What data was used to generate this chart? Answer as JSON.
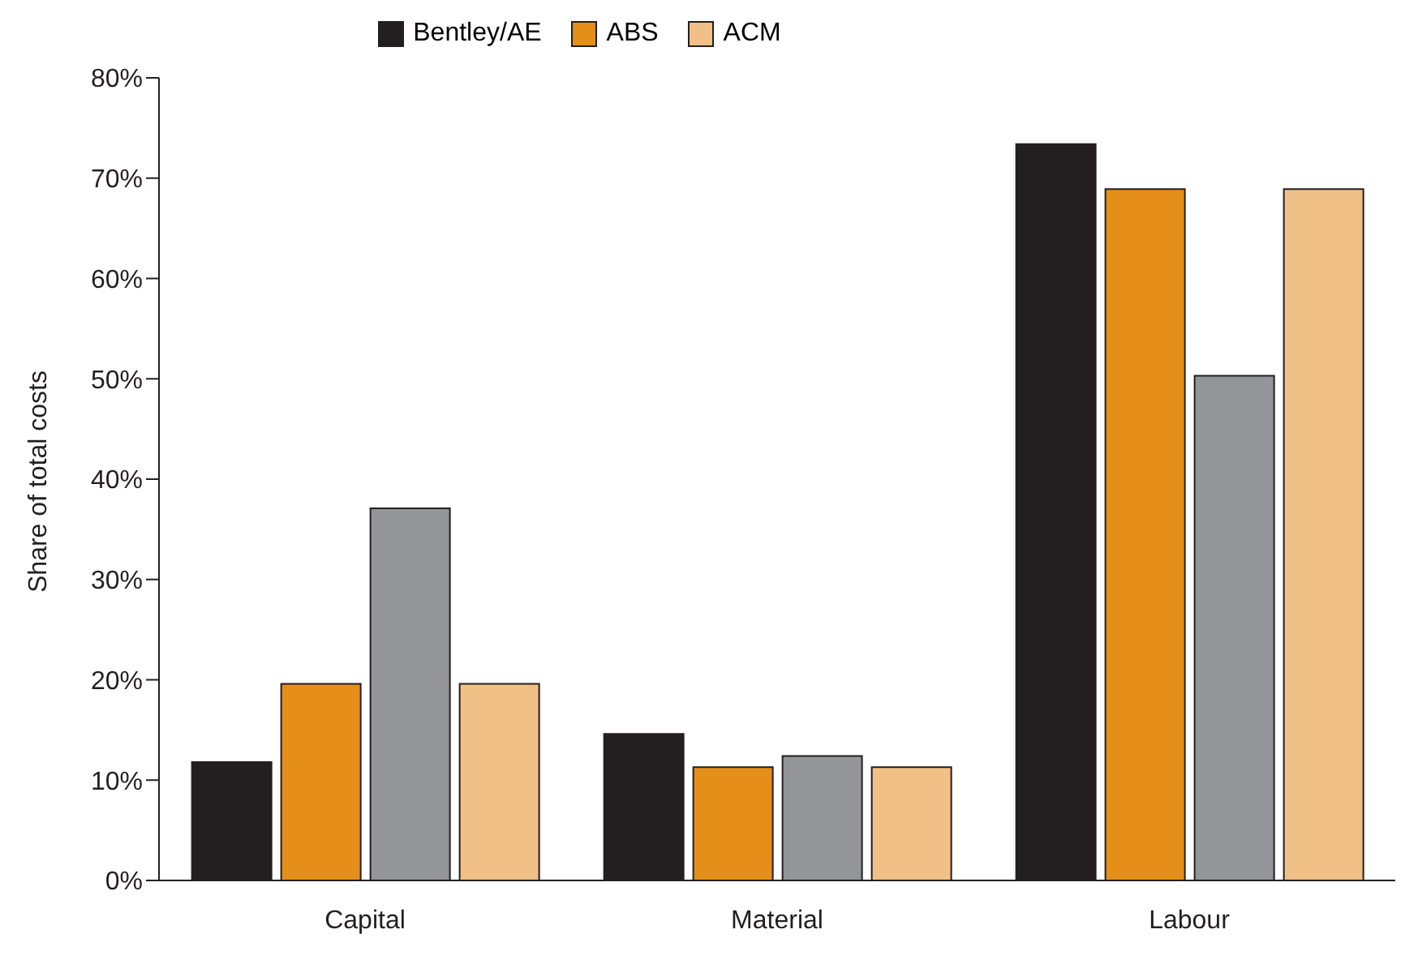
{
  "chart_data": {
    "type": "bar",
    "ylabel": "Share of total costs",
    "categories": [
      "Capital",
      "Material",
      "Labour"
    ],
    "series": [
      {
        "name": "Bentley/AE",
        "color": "#231f20",
        "values": [
          11.8,
          14.6,
          73.4
        ]
      },
      {
        "name": "ABS",
        "color": "#e58e1a",
        "values": [
          19.6,
          11.3,
          68.9
        ]
      },
      {
        "color": "#939598",
        "values": [
          37.1,
          12.4,
          50.3
        ]
      },
      {
        "name": "ACM",
        "color": "#f1c087",
        "values": [
          19.6,
          11.3,
          68.9
        ]
      }
    ],
    "ylim": [
      0,
      80
    ],
    "yticks": [
      {
        "value": 0,
        "label": "0%"
      },
      {
        "value": 10,
        "label": "10%"
      },
      {
        "value": 20,
        "label": "20%"
      },
      {
        "value": 30,
        "label": "30%"
      },
      {
        "value": 40,
        "label": "40%"
      },
      {
        "value": 50,
        "label": "50%"
      },
      {
        "value": 60,
        "label": "60%"
      },
      {
        "value": 70,
        "label": "70%"
      },
      {
        "value": 80,
        "label": "80%"
      }
    ],
    "grid": false,
    "legend": "top"
  }
}
